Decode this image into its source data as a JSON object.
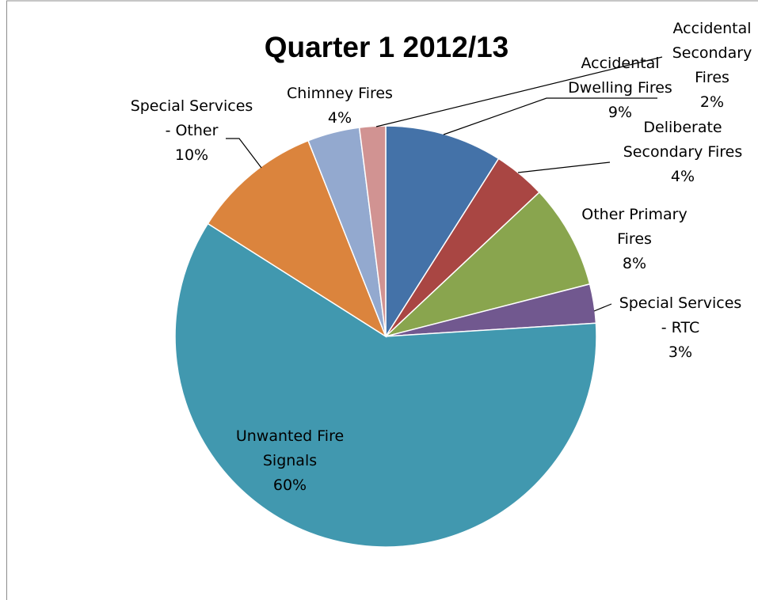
{
  "chart_data": {
    "type": "pie",
    "title": "Quarter 1 2012/13",
    "start_angle_deg": 0,
    "direction": "clockwise",
    "slices": [
      {
        "label": [
          "Accidental",
          "Dwelling Fires"
        ],
        "percent_label": "9%",
        "value": 9,
        "color": "#4472A8"
      },
      {
        "label": [
          "Deliberate",
          "Secondary Fires"
        ],
        "percent_label": "4%",
        "value": 4,
        "color": "#A94643"
      },
      {
        "label": [
          "Other Primary",
          "Fires"
        ],
        "percent_label": "8%",
        "value": 8,
        "color": "#89A54E"
      },
      {
        "label": [
          "Special Services",
          "- RTC"
        ],
        "percent_label": "3%",
        "value": 3,
        "color": "#71588F"
      },
      {
        "label": [
          "Unwanted Fire",
          "Signals"
        ],
        "percent_label": "60%",
        "value": 60,
        "color": "#4198AF"
      },
      {
        "label": [
          "Special Services",
          "- Other"
        ],
        "percent_label": "10%",
        "value": 10,
        "color": "#DB843D"
      },
      {
        "label": [
          "Chimney Fires"
        ],
        "percent_label": "4%",
        "value": 4,
        "color": "#93A9CF"
      },
      {
        "label": [
          "Accidental",
          "Secondary",
          "Fires"
        ],
        "percent_label": "2%",
        "value": 2,
        "color": "#D19392"
      }
    ]
  }
}
